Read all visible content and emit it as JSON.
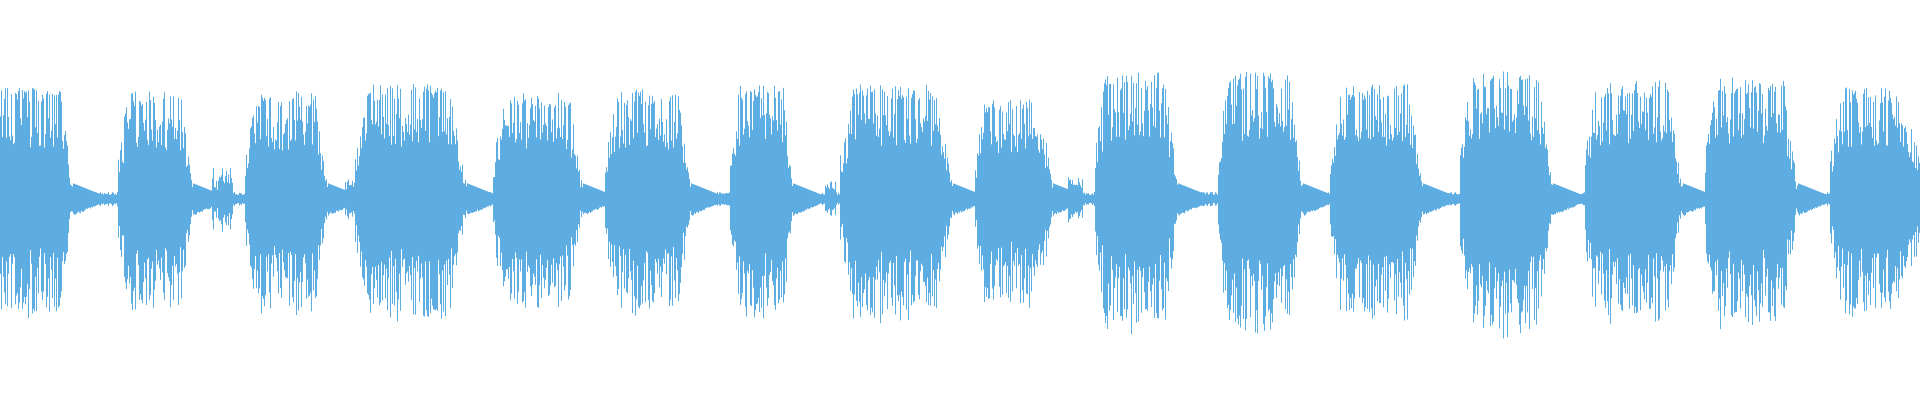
{
  "waveform": {
    "color": "#5DADE2",
    "background": "#FFFFFF"
  }
}
